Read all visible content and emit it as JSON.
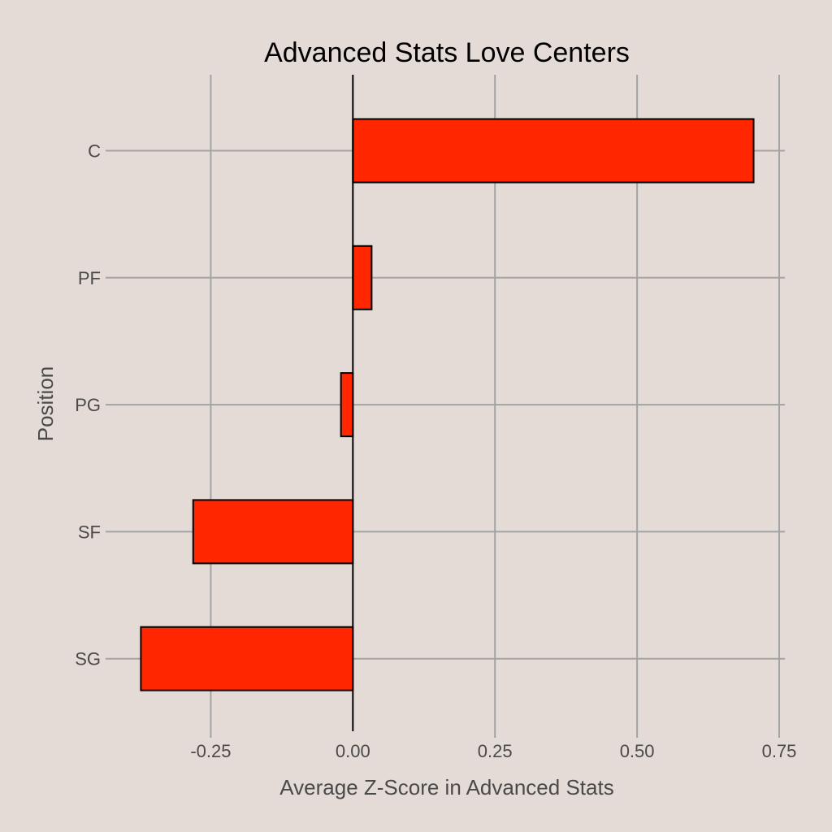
{
  "chart_data": {
    "type": "bar",
    "orientation": "horizontal",
    "title": "Advanced Stats Love Centers",
    "xlabel": "Average Z-Score in Advanced Stats",
    "ylabel": "Position",
    "categories": [
      "C",
      "PF",
      "PG",
      "SF",
      "SG"
    ],
    "values": [
      0.705,
      0.033,
      -0.021,
      -0.281,
      -0.373
    ],
    "xlim": [
      -0.435,
      0.76
    ],
    "xticks": [
      -0.25,
      0.0,
      0.25,
      0.5,
      0.75
    ],
    "xtick_labels": [
      "-0.25",
      "0.00",
      "0.25",
      "0.50",
      "0.75"
    ],
    "grid": true,
    "legend": "none",
    "colors": {
      "background": "#e4dbd7",
      "bar_fill": "#ff2600",
      "bar_stroke": "#000000",
      "grid": "#a3a3a3",
      "zero_line": "#000000",
      "text": "#4a4a4a",
      "title": "#000000"
    }
  }
}
